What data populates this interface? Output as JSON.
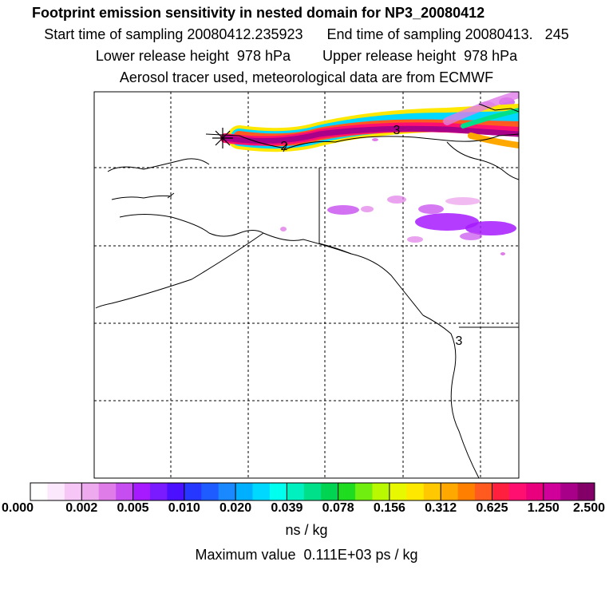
{
  "header": {
    "title": "Footprint emission sensitivity in nested domain for NP3_20080412",
    "sampling": "Start time of sampling 20080412.235923      End time of sampling 20080413.   245",
    "release": "Lower release height  978 hPa        Upper release height  978 hPa",
    "tracer": "Aerosol tracer used, meteorological data are from ECMWF"
  },
  "map": {
    "day_markers": [
      "2",
      "3",
      "3"
    ],
    "release_marker": "asterisk-marker"
  },
  "colorbar": {
    "labels": [
      "0.000",
      "0.002",
      "0.005",
      "0.010",
      "0.020",
      "0.039",
      "0.078",
      "0.156",
      "0.312",
      "0.625",
      "1.250",
      "2.500"
    ],
    "colors": [
      "#ffffff",
      "#fce8fc",
      "#f6c6f6",
      "#eeaaee",
      "#e07ce8",
      "#c64ef0",
      "#a61aff",
      "#7a1aff",
      "#4a10ff",
      "#2638ff",
      "#1f5cff",
      "#1a88ff",
      "#00b0ff",
      "#00d8ff",
      "#00ffee",
      "#00f0c0",
      "#00e08a",
      "#00d450",
      "#20dc20",
      "#70ee10",
      "#b8f800",
      "#e8f800",
      "#ffe800",
      "#ffc800",
      "#ffa800",
      "#ff8000",
      "#ff5a20",
      "#ff2040",
      "#ff1070",
      "#e8007c",
      "#d0009a",
      "#a80088",
      "#820068"
    ],
    "units": "ns / kg",
    "max_value": "Maximum value  0.111E+03 ps / kg"
  }
}
